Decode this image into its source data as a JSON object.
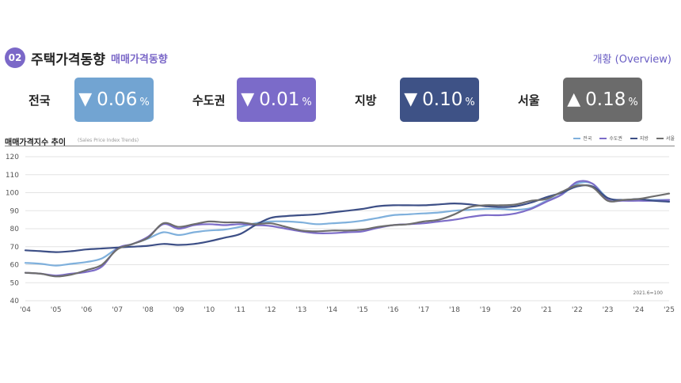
{
  "header": {
    "badge": "02",
    "title": "주택가격동향",
    "subtitle": "매매가격동향",
    "overview_link": "개황 (Overview)"
  },
  "stats": [
    {
      "label": "전국",
      "direction": "down",
      "arrow": "▼",
      "value": "0.06",
      "unit": "%",
      "color": "#72a4d2"
    },
    {
      "label": "수도권",
      "direction": "down",
      "arrow": "▼",
      "value": "0.01",
      "unit": "%",
      "color": "#7b6bc9"
    },
    {
      "label": "지방",
      "direction": "down",
      "arrow": "▼",
      "value": "0.10",
      "unit": "%",
      "color": "#3e5286"
    },
    {
      "label": "서울",
      "direction": "up",
      "arrow": "▲",
      "value": "0.18",
      "unit": "%",
      "color": "#6b6b6b"
    }
  ],
  "chart_data": {
    "type": "line",
    "title": "매매가격지수 추이",
    "subtitle": "(Sales Price Index Trends)",
    "note": "2021.6=100",
    "ylim": [
      40,
      120
    ],
    "yticks": [
      40,
      50,
      60,
      70,
      80,
      90,
      100,
      110,
      120
    ],
    "xlim": [
      2004,
      2025
    ],
    "xticks": [
      {
        "x": 2004,
        "label": "'04"
      },
      {
        "x": 2005,
        "label": "'05"
      },
      {
        "x": 2006,
        "label": "'06"
      },
      {
        "x": 2007,
        "label": "'07"
      },
      {
        "x": 2008,
        "label": "'08"
      },
      {
        "x": 2009,
        "label": "'09"
      },
      {
        "x": 2010,
        "label": "'10"
      },
      {
        "x": 2011,
        "label": "'11"
      },
      {
        "x": 2012,
        "label": "'12"
      },
      {
        "x": 2013,
        "label": "'13"
      },
      {
        "x": 2014,
        "label": "'14"
      },
      {
        "x": 2015,
        "label": "'15"
      },
      {
        "x": 2016,
        "label": "'16"
      },
      {
        "x": 2017,
        "label": "'17"
      },
      {
        "x": 2018,
        "label": "'18"
      },
      {
        "x": 2019,
        "label": "'19"
      },
      {
        "x": 2020,
        "label": "'20"
      },
      {
        "x": 2021,
        "label": "'21"
      },
      {
        "x": 2022,
        "label": "'22"
      },
      {
        "x": 2023,
        "label": "'23"
      },
      {
        "x": 2024,
        "label": "'24"
      },
      {
        "x": 2025,
        "label": "'25"
      }
    ],
    "grid": true,
    "legend_position": "top-right",
    "series": [
      {
        "name": "전국",
        "color": "#7fb0dc",
        "x": [
          2004,
          2004.5,
          2005,
          2005.5,
          2006,
          2006.5,
          2007,
          2007.5,
          2008,
          2008.5,
          2009,
          2009.5,
          2010,
          2010.5,
          2011,
          2011.5,
          2012,
          2012.5,
          2013,
          2013.5,
          2014,
          2014.5,
          2015,
          2015.5,
          2016,
          2016.5,
          2017,
          2017.5,
          2018,
          2018.5,
          2019,
          2019.5,
          2020,
          2020.5,
          2021,
          2021.5,
          2022,
          2022.5,
          2023,
          2023.5,
          2024,
          2024.5,
          2025
        ],
        "y": [
          61,
          60.5,
          59.5,
          60.5,
          61.5,
          63.5,
          69,
          71.5,
          74.5,
          78,
          76.5,
          78,
          79,
          79.5,
          81,
          83,
          84,
          84,
          83.5,
          82.5,
          83,
          83.5,
          84.5,
          86,
          87.5,
          88,
          88.5,
          89,
          90,
          90.5,
          91,
          91,
          90.5,
          91.5,
          95.5,
          99,
          105,
          105,
          97,
          96,
          96,
          96,
          96
        ]
      },
      {
        "name": "수도권",
        "color": "#7c6cc8",
        "x": [
          2004,
          2004.5,
          2005,
          2005.5,
          2006,
          2006.5,
          2007,
          2007.5,
          2008,
          2008.5,
          2009,
          2009.5,
          2010,
          2010.5,
          2011,
          2011.5,
          2012,
          2012.5,
          2013,
          2013.5,
          2014,
          2014.5,
          2015,
          2015.5,
          2016,
          2016.5,
          2017,
          2017.5,
          2018,
          2018.5,
          2019,
          2019.5,
          2020,
          2020.5,
          2021,
          2021.5,
          2022,
          2022.5,
          2023,
          2023.5,
          2024,
          2024.5,
          2025
        ],
        "y": [
          55.5,
          55,
          54,
          55,
          56,
          59,
          69,
          71.5,
          75.5,
          82.5,
          80,
          82,
          82.5,
          82,
          82.5,
          82,
          81.5,
          80,
          78.5,
          77.5,
          77.5,
          78,
          78.5,
          80.5,
          82,
          82.5,
          83,
          84,
          85,
          86.5,
          87.5,
          87.5,
          88.5,
          91,
          95,
          99,
          106,
          105,
          96,
          95.5,
          95.5,
          95.5,
          96
        ]
      },
      {
        "name": "지방",
        "color": "#3d4f86",
        "x": [
          2004,
          2004.5,
          2005,
          2005.5,
          2006,
          2006.5,
          2007,
          2007.5,
          2008,
          2008.5,
          2009,
          2009.5,
          2010,
          2010.5,
          2011,
          2011.5,
          2012,
          2012.5,
          2013,
          2013.5,
          2014,
          2014.5,
          2015,
          2015.5,
          2016,
          2016.5,
          2017,
          2017.5,
          2018,
          2018.5,
          2019,
          2019.5,
          2020,
          2020.5,
          2021,
          2021.5,
          2022,
          2022.5,
          2023,
          2023.5,
          2024,
          2024.5,
          2025
        ],
        "y": [
          68,
          67.5,
          67,
          67.5,
          68.5,
          69,
          69.5,
          70,
          70.5,
          71.5,
          71,
          71.5,
          73,
          75,
          77,
          82,
          86,
          87,
          87.5,
          88,
          89,
          90,
          91,
          92.5,
          93,
          93,
          93,
          93.5,
          94,
          93.5,
          92.5,
          92,
          92.5,
          94.5,
          97.5,
          100,
          103.5,
          103.5,
          97,
          96,
          96.5,
          95.5,
          95
        ]
      },
      {
        "name": "서울",
        "color": "#6e6e6e",
        "x": [
          2004,
          2004.5,
          2005,
          2005.5,
          2006,
          2006.5,
          2007,
          2007.5,
          2008,
          2008.5,
          2009,
          2009.5,
          2010,
          2010.5,
          2011,
          2011.5,
          2012,
          2012.5,
          2013,
          2013.5,
          2014,
          2014.5,
          2015,
          2015.5,
          2016,
          2016.5,
          2017,
          2017.5,
          2018,
          2018.5,
          2019,
          2019.5,
          2020,
          2020.5,
          2021,
          2021.5,
          2022,
          2022.5,
          2023,
          2023.5,
          2024,
          2024.5,
          2025
        ],
        "y": [
          55.5,
          55,
          53.5,
          54.5,
          57,
          60,
          68.5,
          71.5,
          75,
          83,
          81,
          82.5,
          84,
          83.5,
          83.5,
          82.5,
          83,
          81,
          79,
          78.5,
          79,
          79,
          79.5,
          81,
          82,
          82.5,
          84,
          85,
          88,
          92,
          93,
          93,
          93.5,
          95.5,
          96.5,
          100.5,
          104,
          103,
          95.5,
          96,
          96.5,
          98,
          99.5
        ]
      }
    ]
  }
}
